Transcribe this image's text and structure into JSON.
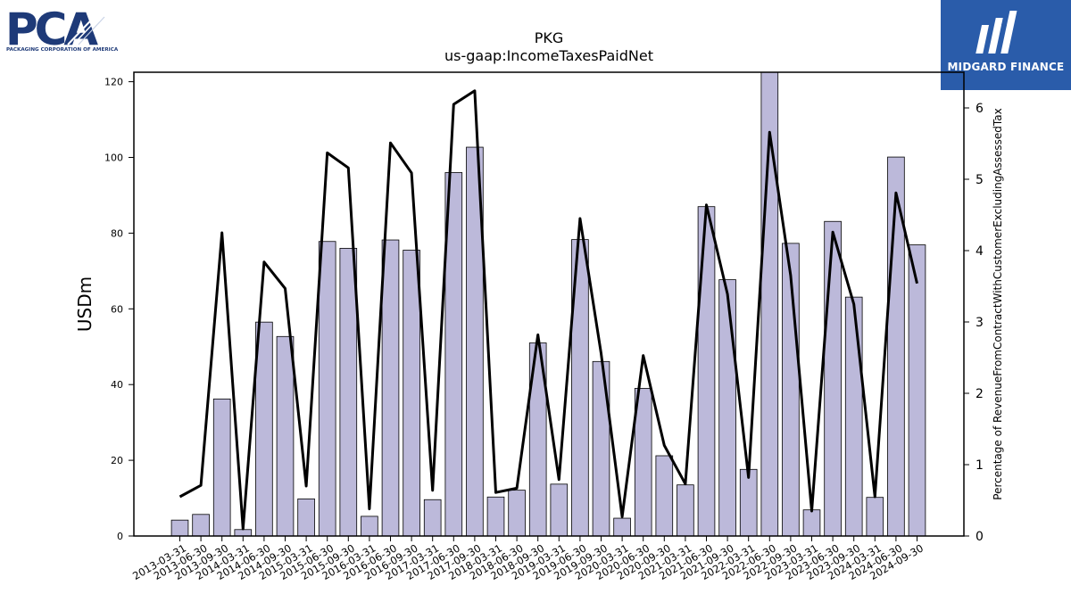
{
  "logos": {
    "left": {
      "text": "PCA",
      "subtext": "PACKAGING CORPORATION OF AMERICA",
      "color": "#1e3a78"
    },
    "right": {
      "text": "MIDGARD FINANCE",
      "bg": "#2a5caa"
    }
  },
  "chart_data": {
    "type": "bar",
    "title": "PKG",
    "subtitle": "us-gaap:IncomeTaxesPaidNet",
    "ylabel": "USDm",
    "y2label": "Percentage of RevenueFromContractWithCustomerExcludingAssessedTax",
    "ylim": [
      0,
      122.5
    ],
    "y2lim": [
      0,
      6.5
    ],
    "yticks": [
      0,
      20,
      40,
      60,
      80,
      100,
      120
    ],
    "y2ticks": [
      0,
      1,
      2,
      3,
      4,
      5,
      6
    ],
    "bar_color": "#bcb9da",
    "line_color": "#000000",
    "categories": [
      "2013-03-31",
      "2013-06-30",
      "2013-09-30",
      "2014-03-31",
      "2014-06-30",
      "2014-09-30",
      "2015-03-31",
      "2015-06-30",
      "2015-09-30",
      "2016-03-31",
      "2016-06-30",
      "2016-09-30",
      "2017-03-31",
      "2017-06-30",
      "2017-09-30",
      "2018-03-31",
      "2018-06-30",
      "2018-09-30",
      "2019-03-31",
      "2019-06-30",
      "2019-09-30",
      "2020-03-31",
      "2020-06-30",
      "2020-09-30",
      "2021-03-31",
      "2021-06-30",
      "2021-09-30",
      "2022-03-31",
      "2022-06-30",
      "2022-09-30",
      "2023-03-31",
      "2023-06-30",
      "2023-09-30",
      "2024-03-31",
      "2024-06-30",
      "2024-09-30"
    ],
    "series": [
      {
        "type": "bar",
        "axis": "left",
        "values": [
          4.2,
          5.7,
          36.2,
          1.7,
          56.5,
          52.7,
          9.8,
          77.8,
          76.0,
          5.2,
          78.2,
          75.5,
          9.6,
          96.0,
          102.7,
          10.3,
          12.1,
          51.0,
          13.7,
          78.3,
          46.1,
          4.7,
          39.0,
          21.2,
          13.5,
          87.0,
          67.7,
          17.6,
          123.0,
          77.3,
          6.9,
          83.1,
          63.1,
          10.2,
          100.1,
          76.9
        ]
      },
      {
        "type": "line",
        "axis": "right",
        "values": [
          0.55,
          0.71,
          4.25,
          0.1,
          3.84,
          3.47,
          0.7,
          5.37,
          5.16,
          0.38,
          5.51,
          5.09,
          0.64,
          6.05,
          6.24,
          0.61,
          0.67,
          2.82,
          0.79,
          4.45,
          2.56,
          0.27,
          2.53,
          1.27,
          0.73,
          4.64,
          3.39,
          0.82,
          5.66,
          3.65,
          0.35,
          4.26,
          3.25,
          0.55,
          4.81,
          3.54
        ]
      }
    ],
    "grid": false
  }
}
